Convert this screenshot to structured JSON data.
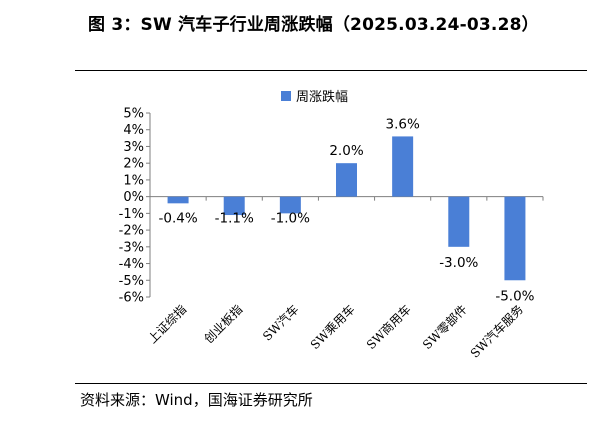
{
  "title": "图 3：SW 汽车子行业周涨跌幅（2025.03.24-03.28）",
  "source": "资料来源：Wind，国海证券研究所",
  "chart_data": {
    "type": "bar",
    "categories": [
      "上证综指",
      "创业板指",
      "SW汽车",
      "SW乘用车",
      "SW商用车",
      "SW零部件",
      "SW汽车服务"
    ],
    "series": [
      {
        "name": "周涨跌幅",
        "values": [
          -0.4,
          -1.1,
          -1.0,
          2.0,
          3.6,
          -3.0,
          -5.0
        ]
      }
    ],
    "value_labels": [
      "-0.4%",
      "-1.1%",
      "-1.0%",
      "2.0%",
      "3.6%",
      "-3.0%",
      "-5.0%"
    ],
    "y_ticks": [
      "5%",
      "4%",
      "3%",
      "2%",
      "1%",
      "0%",
      "-1%",
      "-2%",
      "-3%",
      "-4%",
      "-5%",
      "-6%"
    ],
    "ylim": [
      -6,
      5
    ],
    "legend_position": "top-center",
    "grid": false,
    "bar_color": "#4A7FD6"
  }
}
